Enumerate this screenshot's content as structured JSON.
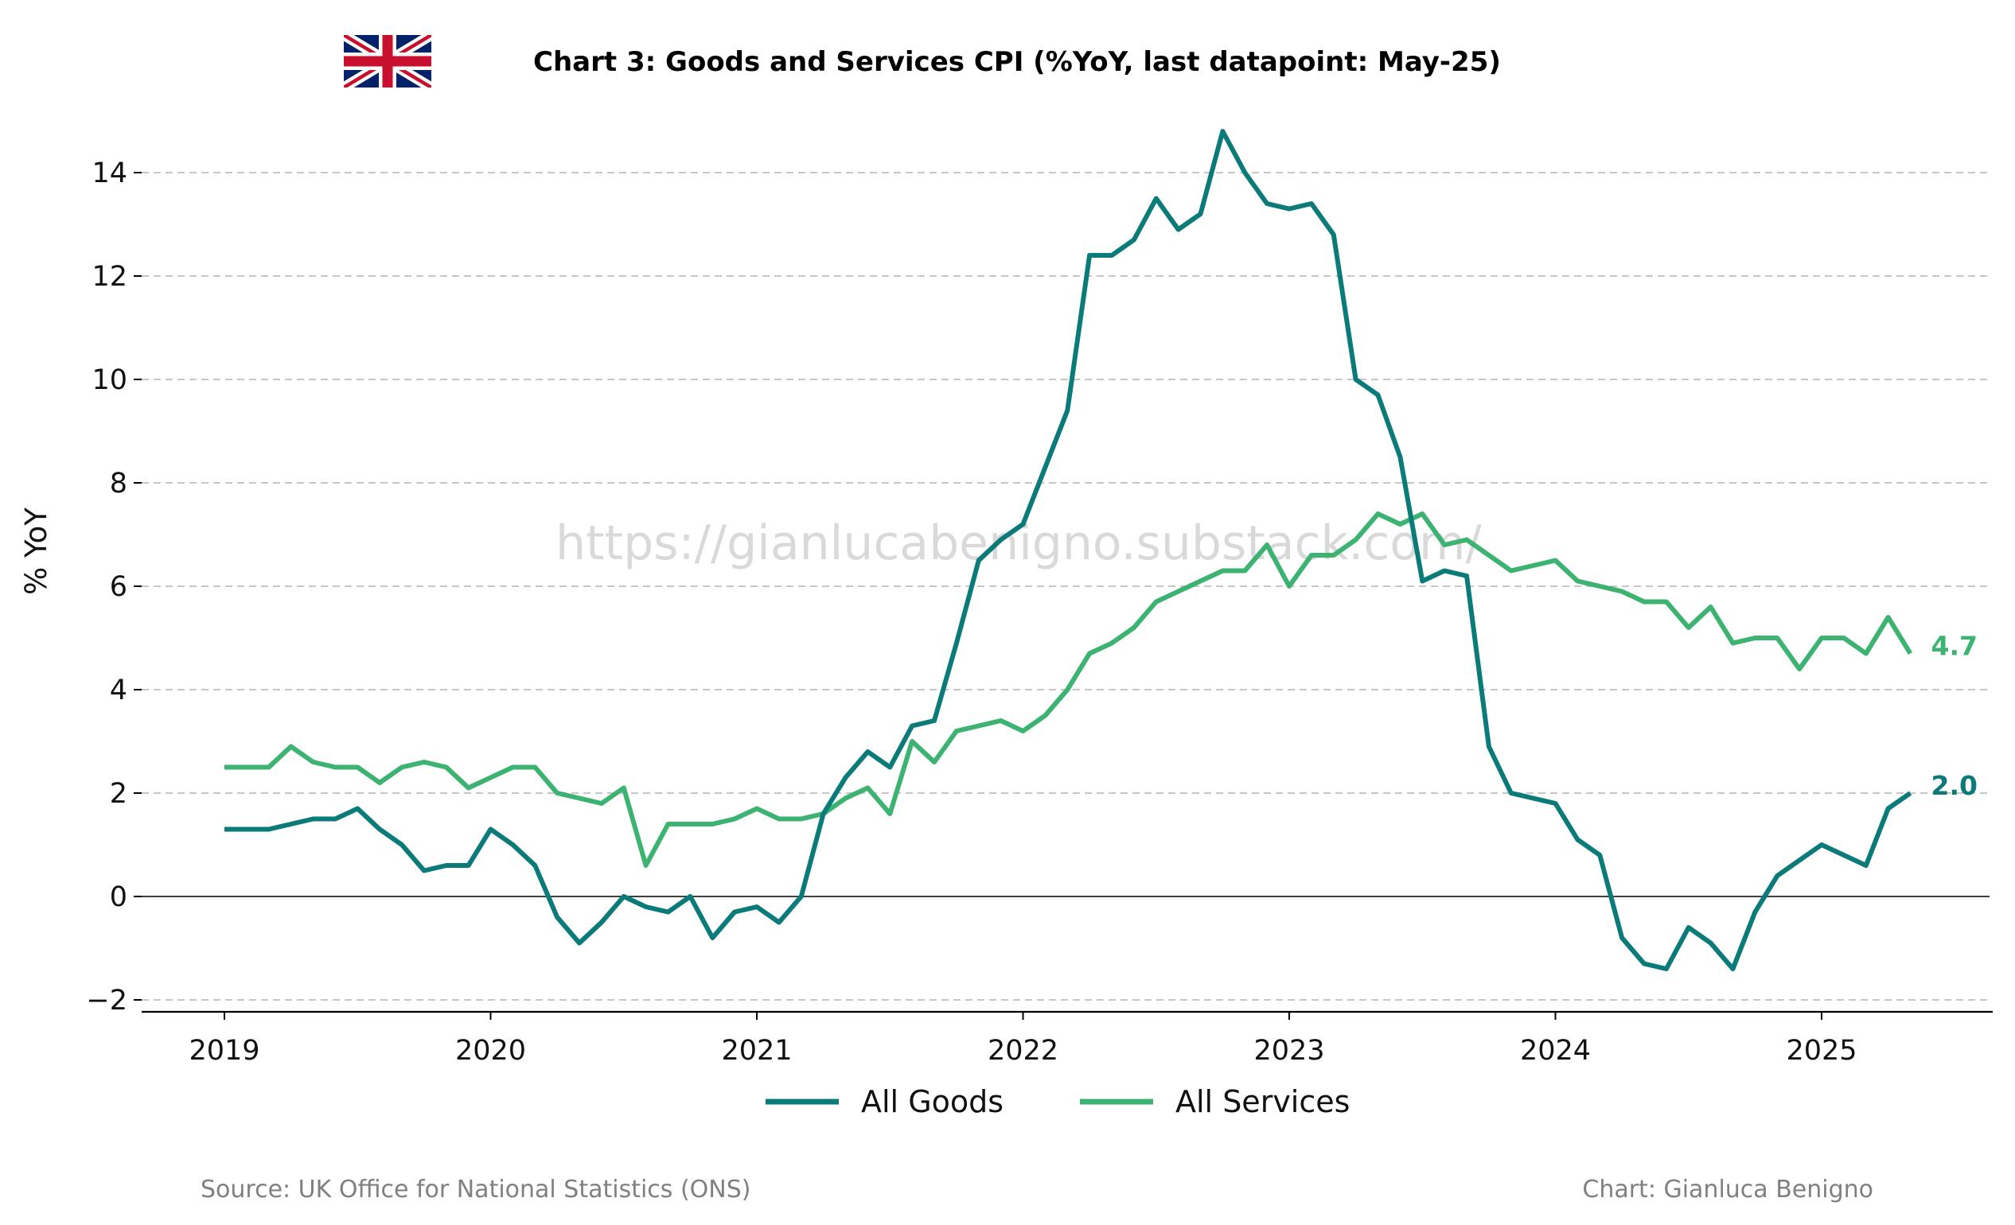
{
  "title": "Chart 3: Goods and Services CPI (%YoY, last datapoint: May-25)",
  "watermark": "https://gianlucabenigno.substack.com/",
  "source": "Source: UK Office for National Statistics (ONS)",
  "credit": "Chart: Gianluca Benigno",
  "flag": "uk-flag-icon",
  "chart_data": {
    "type": "line",
    "ylabel": "% YoY",
    "xlabel": "",
    "ylim": [
      -2.3,
      15.1
    ],
    "yticks": [
      -2,
      0,
      2,
      4,
      6,
      8,
      10,
      12,
      14
    ],
    "ytick_labels": [
      "−2",
      "0",
      "2",
      "4",
      "6",
      "8",
      "10",
      "12",
      "14"
    ],
    "xticks": [
      "2019",
      "2020",
      "2021",
      "2022",
      "2023",
      "2024",
      "2025"
    ],
    "x_start": "2019-01",
    "x_end": "2025-05",
    "grid": "horizontal dashed",
    "legend_position": "bottom-center",
    "series": [
      {
        "name": "All Goods",
        "color": "#0b7b79",
        "end_label": "2.0",
        "values": [
          1.3,
          1.3,
          1.3,
          1.4,
          1.5,
          1.5,
          1.7,
          1.3,
          1.0,
          0.5,
          0.6,
          0.6,
          1.3,
          1.0,
          0.6,
          -0.4,
          -0.9,
          -0.5,
          0.0,
          -0.2,
          -0.3,
          0.0,
          -0.8,
          -0.3,
          -0.2,
          -0.5,
          0.0,
          1.6,
          2.3,
          2.8,
          2.5,
          3.3,
          3.4,
          4.9,
          6.5,
          6.9,
          7.2,
          8.3,
          9.4,
          12.4,
          12.4,
          12.7,
          13.5,
          12.9,
          13.2,
          14.8,
          14.0,
          13.4,
          13.3,
          13.4,
          12.8,
          10.0,
          9.7,
          8.5,
          6.1,
          6.3,
          6.2,
          2.9,
          2.0,
          1.9,
          1.8,
          1.1,
          0.8,
          -0.8,
          -1.3,
          -1.4,
          -0.6,
          -0.9,
          -1.4,
          -0.3,
          0.4,
          0.7,
          1.0,
          0.8,
          0.6,
          1.7,
          2.0
        ]
      },
      {
        "name": "All Services",
        "color": "#3cb371",
        "end_label": "4.7",
        "values": [
          2.5,
          2.5,
          2.5,
          2.9,
          2.6,
          2.5,
          2.5,
          2.2,
          2.5,
          2.6,
          2.5,
          2.1,
          2.3,
          2.5,
          2.5,
          2.0,
          1.9,
          1.8,
          2.1,
          0.6,
          1.4,
          1.4,
          1.4,
          1.5,
          1.7,
          1.5,
          1.5,
          1.6,
          1.9,
          2.1,
          1.6,
          3.0,
          2.6,
          3.2,
          3.3,
          3.4,
          3.2,
          3.5,
          4.0,
          4.7,
          4.9,
          5.2,
          5.7,
          5.9,
          6.1,
          6.3,
          6.3,
          6.8,
          6.0,
          6.6,
          6.6,
          6.9,
          7.4,
          7.2,
          7.4,
          6.8,
          6.9,
          6.6,
          6.3,
          6.4,
          6.5,
          6.1,
          6.0,
          5.9,
          5.7,
          5.7,
          5.2,
          5.6,
          4.9,
          5.0,
          5.0,
          4.4,
          5.0,
          5.0,
          4.7,
          5.4,
          4.7
        ]
      }
    ]
  }
}
